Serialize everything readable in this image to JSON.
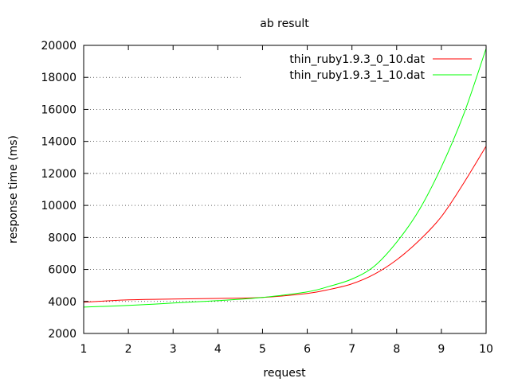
{
  "chart_data": {
    "type": "line",
    "title": "ab result",
    "xlabel": "request",
    "ylabel": "response time (ms)",
    "xlim": [
      1,
      10
    ],
    "ylim": [
      2000,
      20000
    ],
    "xticks": [
      1,
      2,
      3,
      4,
      5,
      6,
      7,
      8,
      9,
      10
    ],
    "yticks": [
      2000,
      4000,
      6000,
      8000,
      10000,
      12000,
      14000,
      16000,
      18000,
      20000
    ],
    "grid": "horizontal-dotted",
    "legend_position": "top-right",
    "series": [
      {
        "name": "thin_ruby1.9.3_0_10.dat",
        "color": "#ff0000",
        "x": [
          1,
          2,
          3,
          4,
          5,
          6,
          6.5,
          7,
          7.5,
          8,
          8.5,
          9,
          9.5,
          10
        ],
        "y": [
          3950,
          4100,
          4150,
          4190,
          4250,
          4500,
          4750,
          5100,
          5700,
          6600,
          7800,
          9300,
          11400,
          13700
        ]
      },
      {
        "name": "thin_ruby1.9.3_1_10.dat",
        "color": "#00ff00",
        "x": [
          1,
          2,
          3,
          4,
          5,
          6,
          6.5,
          7,
          7.5,
          8,
          8.5,
          9,
          9.5,
          10
        ],
        "y": [
          3650,
          3750,
          3900,
          4050,
          4250,
          4600,
          4950,
          5400,
          6200,
          7700,
          9700,
          12400,
          15700,
          19800
        ]
      }
    ]
  }
}
